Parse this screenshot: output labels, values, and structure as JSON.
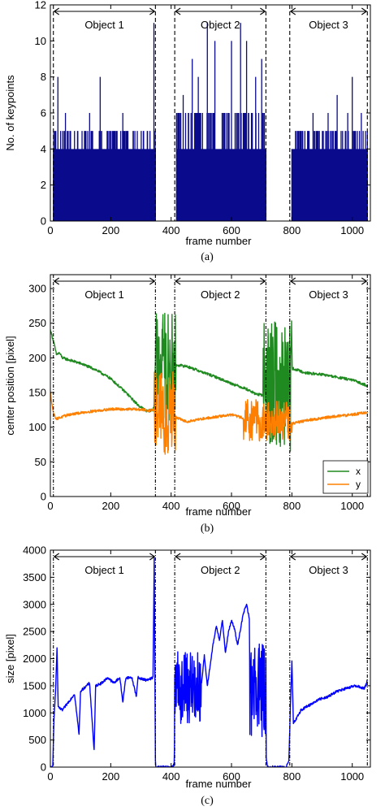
{
  "chart_data": [
    {
      "id": "a",
      "type": "bar",
      "caption": "(a)",
      "xlabel": "frame number",
      "ylabel": "No. of keypoints",
      "xlim": [
        0,
        1060
      ],
      "ylim": [
        0,
        12
      ],
      "xticks": [
        0,
        200,
        400,
        600,
        800,
        1000
      ],
      "yticks": [
        0,
        2,
        4,
        6,
        8,
        10,
        12
      ],
      "objects": [
        {
          "label": "Object 1",
          "start": 10,
          "end": 348
        },
        {
          "label": "Object 2",
          "start": 412,
          "end": 714
        },
        {
          "label": "Object 3",
          "start": 793,
          "end": 1050
        }
      ],
      "series": [
        {
          "color": "#0a0a8c",
          "segments": [
            {
              "from": 10,
              "to": 348,
              "base": 4,
              "max": 5,
              "spikes": [
                [
                  25,
                  8
                ],
                [
                  50,
                  6
                ],
                [
                  90,
                  5
                ],
                [
                  130,
                  6
                ],
                [
                  165,
                  8
                ],
                [
                  200,
                  5
                ],
                [
                  240,
                  6
                ],
                [
                  280,
                  5
                ],
                [
                  330,
                  5
                ],
                [
                  343,
                  11
                ]
              ]
            },
            {
              "from": 418,
              "to": 714,
              "base": 4,
              "max": 6,
              "spikes": [
                [
                  440,
                  7
                ],
                [
                  470,
                  9
                ],
                [
                  490,
                  8
                ],
                [
                  520,
                  11
                ],
                [
                  545,
                  10
                ],
                [
                  600,
                  10
                ],
                [
                  630,
                  11
                ],
                [
                  650,
                  10
                ],
                [
                  680,
                  8
                ],
                [
                  700,
                  9
                ]
              ]
            },
            {
              "from": 800,
              "to": 1050,
              "base": 4,
              "max": 5,
              "spikes": [
                [
                  830,
                  5
                ],
                [
                  870,
                  6
                ],
                [
                  920,
                  6
                ],
                [
                  950,
                  7
                ],
                [
                  985,
                  6
                ],
                [
                  1000,
                  8
                ],
                [
                  1030,
                  6
                ]
              ]
            }
          ]
        }
      ]
    },
    {
      "id": "b",
      "type": "line",
      "caption": "(b)",
      "xlabel": "frame number",
      "ylabel": "center position [pixel]",
      "xlim": [
        0,
        1060
      ],
      "ylim": [
        0,
        320
      ],
      "xticks": [
        0,
        200,
        400,
        600,
        800,
        1000
      ],
      "yticks": [
        0,
        50,
        100,
        150,
        200,
        250,
        300
      ],
      "objects": [
        {
          "label": "Object 1",
          "start": 10,
          "end": 348
        },
        {
          "label": "Object 2",
          "start": 412,
          "end": 714
        },
        {
          "label": "Object 3",
          "start": 793,
          "end": 1050
        }
      ],
      "legend": {
        "position": "bottom-right",
        "entries": [
          "x",
          "y"
        ]
      },
      "series": [
        {
          "name": "x",
          "color": "#1f8a1f",
          "smooth": [
            [
              0,
              240
            ],
            [
              10,
              225
            ],
            [
              20,
              205
            ],
            [
              30,
              207
            ],
            [
              40,
              200
            ],
            [
              100,
              192
            ],
            [
              150,
              183
            ],
            [
              200,
              170
            ],
            [
              250,
              150
            ],
            [
              290,
              132
            ],
            [
              320,
              123
            ],
            [
              340,
              125
            ],
            [
              348,
              140
            ],
            [
              412,
              190
            ],
            [
              450,
              188
            ],
            [
              500,
              180
            ],
            [
              550,
              172
            ],
            [
              600,
              163
            ],
            [
              650,
              155
            ],
            [
              680,
              148
            ],
            [
              714,
              145
            ],
            [
              800,
              185
            ],
            [
              850,
              178
            ],
            [
              900,
              176
            ],
            [
              950,
              172
            ],
            [
              1000,
              168
            ],
            [
              1050,
              160
            ]
          ],
          "noisy": [
            [
              345,
              415,
              110,
              265
            ],
            [
              705,
              800,
              65,
              255
            ]
          ]
        },
        {
          "name": "y",
          "color": "#ff8000",
          "smooth": [
            [
              0,
              150
            ],
            [
              10,
              120
            ],
            [
              20,
              112
            ],
            [
              60,
              118
            ],
            [
              120,
              122
            ],
            [
              200,
              126
            ],
            [
              280,
              126
            ],
            [
              330,
              124
            ],
            [
              348,
              126
            ],
            [
              412,
              115
            ],
            [
              450,
              108
            ],
            [
              500,
              112
            ],
            [
              550,
              115
            ],
            [
              600,
              118
            ],
            [
              650,
              112
            ],
            [
              714,
              105
            ],
            [
              800,
              105
            ],
            [
              850,
              110
            ],
            [
              900,
              113
            ],
            [
              950,
              116
            ],
            [
              1000,
              118
            ],
            [
              1050,
              122
            ]
          ],
          "noisy": [
            [
              345,
              415,
              60,
              180
            ],
            [
              640,
              800,
              80,
              140
            ]
          ]
        }
      ]
    },
    {
      "id": "c",
      "type": "line",
      "caption": "(c)",
      "xlabel": "frame number",
      "ylabel": "size [pixel]",
      "xlim": [
        0,
        1060
      ],
      "ylim": [
        0,
        4000
      ],
      "xticks": [
        0,
        200,
        400,
        600,
        800,
        1000
      ],
      "yticks": [
        0,
        500,
        1000,
        1500,
        2000,
        2500,
        3000,
        3500,
        4000
      ],
      "objects": [
        {
          "label": "Object 1",
          "start": 10,
          "end": 348
        },
        {
          "label": "Object 2",
          "start": 412,
          "end": 714
        },
        {
          "label": "Object 3",
          "start": 793,
          "end": 1050
        }
      ],
      "series": [
        {
          "color": "#0000ff",
          "points": [
            [
              0,
              0
            ],
            [
              8,
              0
            ],
            [
              12,
              900
            ],
            [
              18,
              1500
            ],
            [
              22,
              2200
            ],
            [
              26,
              1100
            ],
            [
              40,
              1050
            ],
            [
              60,
              1200
            ],
            [
              80,
              1350
            ],
            [
              95,
              600
            ],
            [
              100,
              1400
            ],
            [
              130,
              1550
            ],
            [
              145,
              300
            ],
            [
              150,
              1500
            ],
            [
              170,
              1550
            ],
            [
              190,
              1650
            ],
            [
              210,
              1550
            ],
            [
              230,
              1650
            ],
            [
              240,
              1200
            ],
            [
              250,
              1650
            ],
            [
              270,
              1650
            ],
            [
              285,
              1300
            ],
            [
              290,
              1650
            ],
            [
              320,
              1600
            ],
            [
              340,
              1650
            ],
            [
              344,
              3850
            ],
            [
              348,
              100
            ],
            [
              350,
              0
            ],
            [
              400,
              0
            ],
            [
              410,
              50
            ],
            [
              412,
              600
            ],
            [
              420,
              1300
            ],
            [
              430,
              1800
            ],
            [
              440,
              2100
            ],
            [
              455,
              2000
            ],
            [
              470,
              1700
            ],
            [
              480,
              2200
            ],
            [
              490,
              2000
            ],
            [
              500,
              1500
            ],
            [
              510,
              2050
            ],
            [
              520,
              1500
            ],
            [
              540,
              2300
            ],
            [
              550,
              2600
            ],
            [
              560,
              2350
            ],
            [
              570,
              2700
            ],
            [
              580,
              2100
            ],
            [
              590,
              2500
            ],
            [
              600,
              2700
            ],
            [
              610,
              2550
            ],
            [
              620,
              2250
            ],
            [
              640,
              2850
            ],
            [
              650,
              3000
            ],
            [
              660,
              2700
            ],
            [
              670,
              2300
            ],
            [
              680,
              2500
            ],
            [
              690,
              2100
            ],
            [
              700,
              1800
            ],
            [
              710,
              2300
            ],
            [
              714,
              200
            ],
            [
              720,
              0
            ],
            [
              780,
              0
            ],
            [
              790,
              100
            ],
            [
              795,
              1100
            ],
            [
              800,
              1950
            ],
            [
              805,
              800
            ],
            [
              830,
              1050
            ],
            [
              860,
              1150
            ],
            [
              890,
              1250
            ],
            [
              920,
              1300
            ],
            [
              950,
              1400
            ],
            [
              980,
              1450
            ],
            [
              1010,
              1500
            ],
            [
              1040,
              1450
            ],
            [
              1050,
              1600
            ]
          ],
          "noisy": [
            [
              412,
              500,
              800,
              2150
            ],
            [
              660,
              714,
              500,
              2300
            ]
          ]
        }
      ]
    }
  ]
}
